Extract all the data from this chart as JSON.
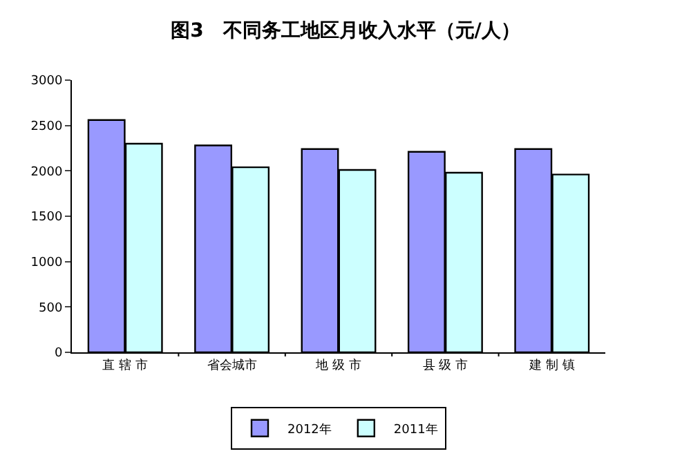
{
  "chart_data": {
    "type": "bar",
    "title": "图3　不同务工地区月收入水平（元/人）",
    "categories": [
      "直 辖 市",
      "省会城市",
      "地 级 市",
      "县 级 市",
      "建 制 镇"
    ],
    "series": [
      {
        "name": "2012年",
        "color": "#9999ff",
        "values": [
          2560,
          2280,
          2240,
          2210,
          2240
        ]
      },
      {
        "name": "2011年",
        "color": "#ccffff",
        "values": [
          2300,
          2040,
          2010,
          1980,
          1960
        ]
      }
    ],
    "ylim": [
      0,
      3000
    ],
    "yticks": [
      0,
      500,
      1000,
      1500,
      2000,
      2500,
      3000
    ],
    "legend": "bottom"
  }
}
